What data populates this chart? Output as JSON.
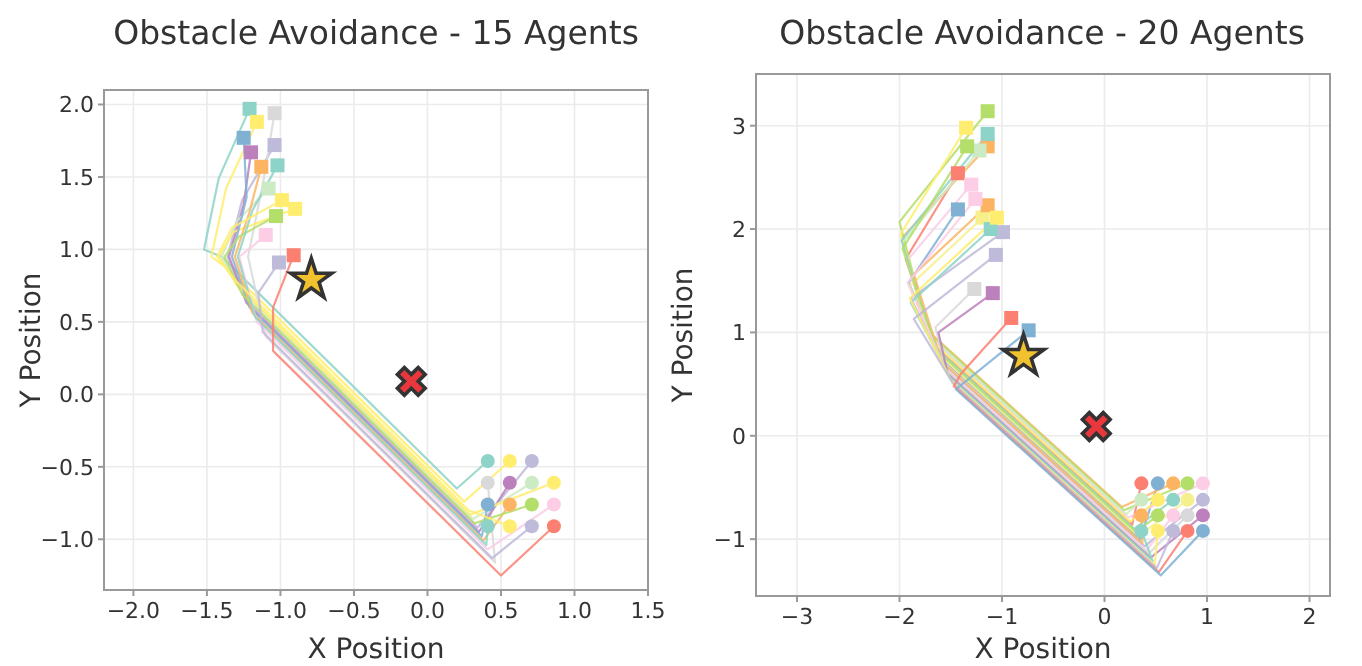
{
  "chart_data": [
    {
      "type": "line",
      "title": "Obstacle Avoidance - 15 Agents",
      "xlabel": "X Position",
      "ylabel": "Y Position",
      "xlim": [
        -2.2,
        1.5
      ],
      "ylim": [
        -1.35,
        2.1
      ],
      "xticks": [
        {
          "value": -2,
          "label": "−2.0"
        },
        {
          "value": -1.5,
          "label": "−1.5"
        },
        {
          "value": -1,
          "label": "−1.0"
        },
        {
          "value": -0.5,
          "label": "−0.5"
        },
        {
          "value": 0,
          "label": "0.0"
        },
        0.5,
        {
          "value": 1,
          "label": "1.0"
        },
        1.5
      ],
      "yticks": [
        {
          "value": -1,
          "label": "−1.0"
        },
        {
          "value": -0.5,
          "label": "−0.5"
        },
        {
          "value": 0,
          "label": "0.0"
        },
        0.5,
        {
          "value": 1,
          "label": "1.0"
        },
        1.5,
        {
          "value": 2,
          "label": "2.0"
        }
      ],
      "grid": true,
      "marker": "none",
      "line_style": "solid",
      "series": [
        {
          "type": "line",
          "color": "#8dd3c7",
          "x": [
            0.41,
            0.2,
            -1.4,
            -1.52,
            -1.42,
            -1.21
          ],
          "values": [
            -0.46,
            -0.65,
            0.95,
            1.0,
            1.49,
            1.97
          ]
        },
        {
          "type": "line",
          "color": "#ffed6f",
          "x": [
            0.56,
            0.25,
            -1.35,
            -1.47,
            -1.37,
            -1.16
          ],
          "values": [
            -0.46,
            -0.74,
            0.86,
            0.95,
            1.42,
            1.88
          ]
        },
        {
          "type": "line",
          "color": "#bebada",
          "x": [
            0.71,
            0.34,
            -1.24,
            -1.36,
            -1.26,
            -1.04
          ],
          "values": [
            -0.46,
            -0.92,
            0.66,
            0.95,
            1.34,
            1.72
          ]
        },
        {
          "type": "line",
          "color": "#d9d9d9",
          "x": [
            0.41,
            0.46,
            -1.1,
            -1.22,
            -1.12,
            -1.04
          ],
          "values": [
            -0.61,
            -1.16,
            0.4,
            0.95,
            1.45,
            1.94
          ]
        },
        {
          "type": "line",
          "color": "#bc80bd",
          "x": [
            0.56,
            0.35,
            -1.23,
            -1.35,
            -1.25,
            -1.2
          ],
          "values": [
            -0.61,
            -0.95,
            0.63,
            0.95,
            1.31,
            1.67
          ]
        },
        {
          "type": "line",
          "color": "#ccebc5",
          "x": [
            0.71,
            0.31,
            -1.28,
            -1.4,
            -1.3,
            -1.08
          ],
          "values": [
            -0.61,
            -0.86,
            0.73,
            0.95,
            1.19,
            1.42
          ]
        },
        {
          "type": "line",
          "color": "#ffed6f",
          "x": [
            0.86,
            0.29,
            -1.3,
            -1.42,
            -1.32,
            -0.9
          ],
          "values": [
            -0.61,
            -0.83,
            0.76,
            0.95,
            1.12,
            1.28
          ]
        },
        {
          "type": "line",
          "color": "#80b1d3",
          "x": [
            0.41,
            0.37,
            -1.21,
            -1.33,
            -1.23,
            -1.25
          ],
          "values": [
            -0.76,
            -0.98,
            0.6,
            0.95,
            1.36,
            1.77
          ]
        },
        {
          "type": "line",
          "color": "#fdb462",
          "x": [
            0.56,
            0.38,
            -1.19,
            -1.31,
            -1.21,
            -1.13
          ],
          "values": [
            -0.76,
            -1.01,
            0.56,
            0.95,
            1.26,
            1.57
          ]
        },
        {
          "type": "line",
          "color": "#b3de69",
          "x": [
            0.71,
            0.32,
            -1.26,
            -1.38,
            -1.28,
            -1.03
          ],
          "values": [
            -0.76,
            -0.89,
            0.69,
            0.95,
            1.09,
            1.23
          ]
        },
        {
          "type": "line",
          "color": "#fccde5",
          "x": [
            0.86,
            0.41,
            -1.16,
            -1.28,
            -1.18,
            -1.1
          ],
          "values": [
            -0.76,
            -1.07,
            0.5,
            0.95,
            1.03,
            1.1
          ]
        },
        {
          "type": "line",
          "color": "#8dd3c7",
          "x": [
            0.41,
            0.4,
            -1.17,
            -1.29,
            -1.19,
            -1.02
          ],
          "values": [
            -0.91,
            -1.04,
            0.53,
            0.95,
            1.27,
            1.58
          ]
        },
        {
          "type": "line",
          "color": "#ffed6f",
          "x": [
            0.56,
            0.28,
            -1.31,
            -1.43,
            -1.33,
            -0.99
          ],
          "values": [
            -0.91,
            -0.8,
            0.79,
            0.95,
            1.15,
            1.34
          ]
        },
        {
          "type": "line",
          "color": "#bebada",
          "x": [
            0.71,
            0.44,
            -1.12,
            -1.15,
            -1.01
          ],
          "values": [
            -0.91,
            -1.13,
            0.43,
            0.7,
            0.91
          ]
        },
        {
          "type": "line",
          "color": "#fb8072",
          "x": [
            0.86,
            0.5,
            -1.05,
            -1.05,
            -0.91
          ],
          "values": [
            -0.91,
            -1.25,
            0.3,
            0.6,
            0.96
          ]
        },
        {
          "type": "scatter",
          "marker": "circle",
          "x": [
            0.41,
            0.56,
            0.71,
            0.41,
            0.56,
            0.71,
            0.86,
            0.41,
            0.56,
            0.71,
            0.86,
            0.41,
            0.56,
            0.71,
            0.86
          ],
          "values": [
            -0.46,
            -0.46,
            -0.46,
            -0.61,
            -0.61,
            -0.61,
            -0.61,
            -0.76,
            -0.76,
            -0.76,
            -0.76,
            -0.91,
            -0.91,
            -0.91,
            -0.91
          ],
          "colors": [
            "#8dd3c7",
            "#ffed6f",
            "#bebada",
            "#d9d9d9",
            "#bc80bd",
            "#ccebc5",
            "#ffed6f",
            "#80b1d3",
            "#fdb462",
            "#b3de69",
            "#fccde5",
            "#8dd3c7",
            "#ffed6f",
            "#bebada",
            "#fb8072"
          ]
        },
        {
          "type": "scatter",
          "marker": "square",
          "x": [
            -1.21,
            -1.16,
            -1.04,
            -1.04,
            -1.2,
            -1.08,
            -0.9,
            -1.25,
            -1.13,
            -1.03,
            -1.1,
            -1.02,
            -0.99,
            -1.01,
            -0.91
          ],
          "values": [
            1.97,
            1.88,
            1.72,
            1.94,
            1.67,
            1.42,
            1.28,
            1.77,
            1.57,
            1.23,
            1.1,
            1.58,
            1.34,
            0.91,
            0.96
          ],
          "colors": [
            "#8dd3c7",
            "#ffed6f",
            "#bebada",
            "#d9d9d9",
            "#bc80bd",
            "#ccebc5",
            "#ffed6f",
            "#80b1d3",
            "#fdb462",
            "#b3de69",
            "#fccde5",
            "#8dd3c7",
            "#ffed6f",
            "#bebada",
            "#fb8072"
          ]
        },
        {
          "type": "scatter",
          "marker": "star",
          "color": "#f2c12e",
          "x": [
            -0.79
          ],
          "values": [
            0.79
          ]
        },
        {
          "type": "scatter",
          "marker": "cross",
          "color": "#e8383d",
          "x": [
            -0.11
          ],
          "values": [
            0.09
          ]
        }
      ]
    },
    {
      "type": "line",
      "title": "Obstacle Avoidance - 20 Agents",
      "xlabel": "X Position",
      "ylabel": "Y Position",
      "xlim": [
        -3.4,
        2.2
      ],
      "ylim": [
        -1.55,
        3.5
      ],
      "xticks": [
        {
          "value": -3,
          "label": "−3"
        },
        {
          "value": -2,
          "label": "−2"
        },
        {
          "value": -1,
          "label": "−1"
        },
        0,
        1,
        2
      ],
      "yticks": [
        {
          "value": -1,
          "label": "−1"
        },
        0,
        1,
        2,
        3
      ],
      "grid": true,
      "marker": "none",
      "line_style": "solid",
      "series": [
        {
          "type": "line",
          "color": "#fb8072",
          "x": [
            0.36,
            0.27,
            -1.66,
            -1.94,
            -1.43
          ],
          "values": [
            -0.46,
            -0.86,
            0.88,
            1.71,
            2.54
          ]
        },
        {
          "type": "line",
          "color": "#80b1d3",
          "x": [
            0.52,
            0.35,
            -1.6,
            -1.91,
            -1.43
          ],
          "values": [
            -0.46,
            -1.0,
            0.76,
            1.48,
            2.19
          ]
        },
        {
          "type": "line",
          "color": "#fdb462",
          "x": [
            0.67,
            0.17,
            -1.74,
            -1.97,
            -1.14
          ],
          "values": [
            -0.46,
            -0.69,
            1.03,
            1.92,
            2.8
          ]
        },
        {
          "type": "line",
          "color": "#b3de69",
          "x": [
            0.81,
            0.19,
            -1.72,
            -2.0,
            -1.14
          ],
          "values": [
            -0.46,
            -0.72,
            1.0,
            2.07,
            3.14
          ]
        },
        {
          "type": "line",
          "color": "#fccde5",
          "x": [
            0.96,
            0.23,
            -1.69,
            -1.93,
            -1.3
          ],
          "values": [
            -0.46,
            -0.79,
            0.94,
            1.69,
            2.43
          ]
        },
        {
          "type": "line",
          "color": "#ccebc5",
          "x": [
            0.36,
            0.21,
            -1.71,
            -1.97,
            -1.22
          ],
          "values": [
            -0.62,
            -0.76,
            0.97,
            1.87,
            2.76
          ]
        },
        {
          "type": "line",
          "color": "#ffed6f",
          "x": [
            0.52,
            0.25,
            -1.68,
            -1.99,
            -1.35
          ],
          "values": [
            -0.62,
            -0.83,
            0.91,
            1.95,
            2.98
          ]
        },
        {
          "type": "line",
          "color": "#8dd3c7",
          "x": [
            0.67,
            0.29,
            -1.65,
            -1.98,
            -1.14
          ],
          "values": [
            -0.62,
            -0.9,
            0.85,
            1.89,
            2.92
          ]
        },
        {
          "type": "line",
          "color": "#f5f08c",
          "x": [
            0.81,
            0.33,
            -1.62,
            -1.9,
            -1.19
          ],
          "values": [
            -0.62,
            -0.97,
            0.79,
            1.45,
            2.11
          ]
        },
        {
          "type": "line",
          "color": "#bebada",
          "x": [
            0.96,
            0.39,
            -1.57,
            -1.89,
            -0.99
          ],
          "values": [
            -0.62,
            -1.07,
            0.69,
            1.33,
            1.97
          ]
        },
        {
          "type": "line",
          "color": "#fdb462",
          "x": [
            0.36,
            0.37,
            -1.59,
            -1.86,
            -1.14
          ],
          "values": [
            -0.77,
            -1.04,
            0.72,
            1.56,
            2.23
          ]
        },
        {
          "type": "line",
          "color": "#b3de69",
          "x": [
            0.52,
            0.31,
            -1.63,
            -1.97,
            -1.34
          ],
          "values": [
            -0.77,
            -0.93,
            0.82,
            1.81,
            2.8
          ]
        },
        {
          "type": "line",
          "color": "#fccde5",
          "x": [
            0.67,
            0.41,
            -1.56,
            -1.92,
            -1.26
          ],
          "values": [
            -0.77,
            -1.11,
            0.66,
            1.48,
            2.29
          ]
        },
        {
          "type": "line",
          "color": "#d9d9d9",
          "x": [
            0.81,
            0.43,
            -1.54,
            -1.65,
            -1.27
          ],
          "values": [
            -0.77,
            -1.14,
            0.63,
            1.05,
            1.42
          ]
        },
        {
          "type": "line",
          "color": "#bc80bd",
          "x": [
            0.96,
            0.45,
            -1.53,
            -1.62,
            -1.09
          ],
          "values": [
            -0.77,
            -1.18,
            0.6,
            1.0,
            1.38
          ]
        },
        {
          "type": "line",
          "color": "#8dd3c7",
          "x": [
            0.36,
            0.47,
            -1.51,
            -1.89,
            -1.11
          ],
          "values": [
            -0.92,
            -1.21,
            0.57,
            1.29,
            2.0
          ]
        },
        {
          "type": "line",
          "color": "#ffed6f",
          "x": [
            0.52,
            0.49,
            -1.5,
            -1.9,
            -1.05
          ],
          "values": [
            -0.92,
            -1.25,
            0.54,
            1.33,
            2.11
          ]
        },
        {
          "type": "line",
          "color": "#bebada",
          "x": [
            0.67,
            0.51,
            -1.48,
            -1.86,
            -1.06
          ],
          "values": [
            -0.92,
            -1.28,
            0.51,
            1.13,
            1.75
          ]
        },
        {
          "type": "line",
          "color": "#fb8072",
          "x": [
            0.81,
            0.53,
            -1.47,
            -1.4,
            -0.91
          ],
          "values": [
            -0.92,
            -1.32,
            0.48,
            0.6,
            1.14
          ]
        },
        {
          "type": "line",
          "color": "#80b1d3",
          "x": [
            0.96,
            0.55,
            -1.45,
            -0.74
          ],
          "values": [
            -0.92,
            -1.35,
            0.45,
            1.02
          ]
        },
        {
          "type": "scatter",
          "marker": "circle",
          "x": [
            0.36,
            0.52,
            0.67,
            0.81,
            0.96,
            0.36,
            0.52,
            0.67,
            0.81,
            0.96,
            0.36,
            0.52,
            0.67,
            0.81,
            0.96,
            0.36,
            0.52,
            0.67,
            0.81,
            0.96
          ],
          "values": [
            -0.46,
            -0.46,
            -0.46,
            -0.46,
            -0.46,
            -0.62,
            -0.62,
            -0.62,
            -0.62,
            -0.62,
            -0.77,
            -0.77,
            -0.77,
            -0.77,
            -0.77,
            -0.92,
            -0.92,
            -0.92,
            -0.92,
            -0.92
          ],
          "colors": [
            "#fb8072",
            "#80b1d3",
            "#fdb462",
            "#b3de69",
            "#fccde5",
            "#ccebc5",
            "#ffed6f",
            "#8dd3c7",
            "#f5f08c",
            "#bebada",
            "#fdb462",
            "#b3de69",
            "#fccde5",
            "#d9d9d9",
            "#bc80bd",
            "#8dd3c7",
            "#ffed6f",
            "#bebada",
            "#fb8072",
            "#80b1d3"
          ]
        },
        {
          "type": "scatter",
          "marker": "square",
          "x": [
            -1.43,
            -1.43,
            -1.14,
            -1.14,
            -1.3,
            -1.22,
            -1.35,
            -1.14,
            -1.19,
            -0.99,
            -1.14,
            -1.34,
            -1.26,
            -1.27,
            -1.09,
            -1.11,
            -1.05,
            -1.06,
            -0.91,
            -0.74
          ],
          "values": [
            2.54,
            2.19,
            2.8,
            3.14,
            2.43,
            2.76,
            2.98,
            2.92,
            2.11,
            1.97,
            2.23,
            2.8,
            2.29,
            1.42,
            1.38,
            2.0,
            2.11,
            1.75,
            1.14,
            1.02
          ],
          "colors": [
            "#fb8072",
            "#80b1d3",
            "#fdb462",
            "#b3de69",
            "#fccde5",
            "#ccebc5",
            "#ffed6f",
            "#8dd3c7",
            "#f5f08c",
            "#bebada",
            "#fdb462",
            "#b3de69",
            "#fccde5",
            "#d9d9d9",
            "#bc80bd",
            "#8dd3c7",
            "#ffed6f",
            "#bebada",
            "#fb8072",
            "#80b1d3"
          ]
        },
        {
          "type": "scatter",
          "marker": "star",
          "color": "#f2c12e",
          "x": [
            -0.79
          ],
          "values": [
            0.77
          ]
        },
        {
          "type": "scatter",
          "marker": "cross",
          "color": "#e8383d",
          "x": [
            -0.08
          ],
          "values": [
            0.09
          ]
        }
      ]
    }
  ]
}
